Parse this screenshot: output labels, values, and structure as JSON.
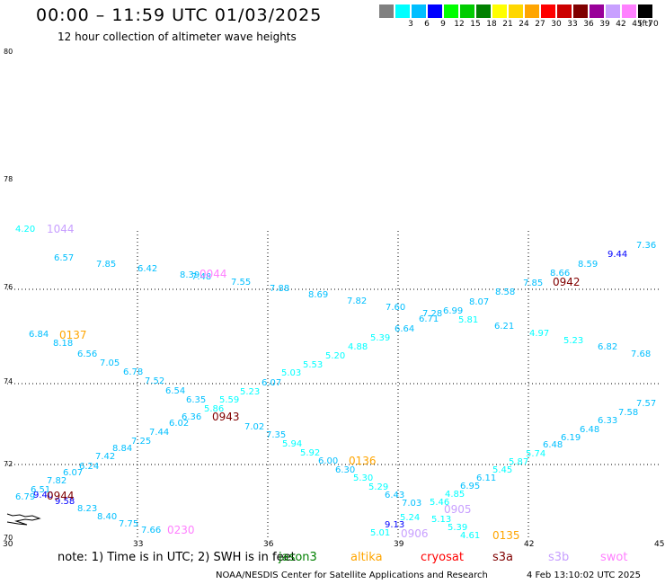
{
  "header": {
    "title": "00:00 – 11:59 UTC 01/03/2025",
    "subtitle": "12 hour collection of altimeter wave heights"
  },
  "scale": {
    "unit": "(ft)",
    "bins": [
      {
        "label": "",
        "color": "#808080"
      },
      {
        "label": "3",
        "color": "#00ffff"
      },
      {
        "label": "6",
        "color": "#00bfff"
      },
      {
        "label": "9",
        "color": "#0000ff"
      },
      {
        "label": "12",
        "color": "#00ff00"
      },
      {
        "label": "15",
        "color": "#00cc00"
      },
      {
        "label": "18",
        "color": "#008000"
      },
      {
        "label": "21",
        "color": "#ffff00"
      },
      {
        "label": "24",
        "color": "#ffd700"
      },
      {
        "label": "27",
        "color": "#ffa500"
      },
      {
        "label": "30",
        "color": "#ff0000"
      },
      {
        "label": "33",
        "color": "#cc0000"
      },
      {
        "label": "36",
        "color": "#800000"
      },
      {
        "label": "39",
        "color": "#990099"
      },
      {
        "label": "42",
        "color": "#c8a0ff"
      },
      {
        "label": "45",
        "color": "#ff80ff"
      },
      {
        "label": "70",
        "color": "#000000"
      }
    ]
  },
  "axes": {
    "lat_labels": [
      "80",
      "78",
      "76",
      "74",
      "72",
      "70"
    ],
    "lon_labels": [
      "30",
      "33",
      "36",
      "39",
      "42",
      "45"
    ]
  },
  "passes": [
    {
      "text": "1044",
      "color": "#c8a0ff"
    },
    {
      "text": "0044",
      "color": "#ff80ff"
    },
    {
      "text": "0942",
      "color": "#800000"
    },
    {
      "text": "0137",
      "color": "#ffa500"
    },
    {
      "text": "0943",
      "color": "#800000"
    },
    {
      "text": "0136",
      "color": "#ffa500"
    },
    {
      "text": "0944",
      "color": "#800000"
    },
    {
      "text": "0230",
      "color": "#ff80ff"
    },
    {
      "text": "0905",
      "color": "#c8a0ff"
    },
    {
      "text": "0906",
      "color": "#c8a0ff"
    },
    {
      "text": "0135",
      "color": "#ffa500"
    }
  ],
  "wave_heights": [
    {
      "v": "4.20",
      "c": "#00ffff"
    },
    {
      "v": "6.57",
      "c": "#00bfff"
    },
    {
      "v": "7.85",
      "c": "#00bfff"
    },
    {
      "v": "6.42",
      "c": "#00bfff"
    },
    {
      "v": "8.39",
      "c": "#00bfff"
    },
    {
      "v": "7.48",
      "c": "#00bfff"
    },
    {
      "v": "7.55",
      "c": "#00bfff"
    },
    {
      "v": "7.88",
      "c": "#00bfff"
    },
    {
      "v": "8.69",
      "c": "#00bfff"
    },
    {
      "v": "7.82",
      "c": "#00bfff"
    },
    {
      "v": "7.60",
      "c": "#00bfff"
    },
    {
      "v": "7.28",
      "c": "#00bfff"
    },
    {
      "v": "6.99",
      "c": "#00bfff"
    },
    {
      "v": "6.71",
      "c": "#00bfff"
    },
    {
      "v": "8.07",
      "c": "#00bfff"
    },
    {
      "v": "5.81",
      "c": "#00ffff"
    },
    {
      "v": "8.58",
      "c": "#00bfff"
    },
    {
      "v": "7.85",
      "c": "#00bfff"
    },
    {
      "v": "8.66",
      "c": "#00bfff"
    },
    {
      "v": "8.59",
      "c": "#00bfff"
    },
    {
      "v": "9.44",
      "c": "#0000ff"
    },
    {
      "v": "7.36",
      "c": "#00bfff"
    },
    {
      "v": "6.84",
      "c": "#00bfff"
    },
    {
      "v": "8.18",
      "c": "#00bfff"
    },
    {
      "v": "6.56",
      "c": "#00bfff"
    },
    {
      "v": "7.05",
      "c": "#00bfff"
    },
    {
      "v": "6.78",
      "c": "#00bfff"
    },
    {
      "v": "7.52",
      "c": "#00bfff"
    },
    {
      "v": "6.54",
      "c": "#00bfff"
    },
    {
      "v": "6.35",
      "c": "#00bfff"
    },
    {
      "v": "5.59",
      "c": "#00ffff"
    },
    {
      "v": "5.23",
      "c": "#00ffff"
    },
    {
      "v": "6.07",
      "c": "#00bfff"
    },
    {
      "v": "5.03",
      "c": "#00ffff"
    },
    {
      "v": "5.53",
      "c": "#00ffff"
    },
    {
      "v": "5.20",
      "c": "#00ffff"
    },
    {
      "v": "4.88",
      "c": "#00ffff"
    },
    {
      "v": "5.39",
      "c": "#00ffff"
    },
    {
      "v": "6.64",
      "c": "#00bfff"
    },
    {
      "v": "6.21",
      "c": "#00bfff"
    },
    {
      "v": "4.97",
      "c": "#00ffff"
    },
    {
      "v": "5.23",
      "c": "#00ffff"
    },
    {
      "v": "6.82",
      "c": "#00bfff"
    },
    {
      "v": "7.68",
      "c": "#00bfff"
    },
    {
      "v": "6.36",
      "c": "#00bfff"
    },
    {
      "v": "5.86",
      "c": "#00ffff"
    },
    {
      "v": "6.02",
      "c": "#00bfff"
    },
    {
      "v": "7.44",
      "c": "#00bfff"
    },
    {
      "v": "7.25",
      "c": "#00bfff"
    },
    {
      "v": "8.84",
      "c": "#00bfff"
    },
    {
      "v": "7.42",
      "c": "#00bfff"
    },
    {
      "v": "6.24",
      "c": "#00bfff"
    },
    {
      "v": "6.07",
      "c": "#00bfff"
    },
    {
      "v": "7.82",
      "c": "#00bfff"
    },
    {
      "v": "6.51",
      "c": "#00bfff"
    },
    {
      "v": "6.79",
      "c": "#00bfff"
    },
    {
      "v": "9.40",
      "c": "#0000ff"
    },
    {
      "v": "9.58",
      "c": "#0000ff"
    },
    {
      "v": "8.23",
      "c": "#00bfff"
    },
    {
      "v": "8.40",
      "c": "#00bfff"
    },
    {
      "v": "7.75",
      "c": "#00bfff"
    },
    {
      "v": "7.66",
      "c": "#00bfff"
    },
    {
      "v": "7.02",
      "c": "#00bfff"
    },
    {
      "v": "7.35",
      "c": "#00bfff"
    },
    {
      "v": "5.94",
      "c": "#00ffff"
    },
    {
      "v": "5.92",
      "c": "#00ffff"
    },
    {
      "v": "6.00",
      "c": "#00bfff"
    },
    {
      "v": "6.30",
      "c": "#00bfff"
    },
    {
      "v": "5.30",
      "c": "#00ffff"
    },
    {
      "v": "5.29",
      "c": "#00ffff"
    },
    {
      "v": "6.43",
      "c": "#00bfff"
    },
    {
      "v": "7.03",
      "c": "#00bfff"
    },
    {
      "v": "5.46",
      "c": "#00ffff"
    },
    {
      "v": "4.85",
      "c": "#00ffff"
    },
    {
      "v": "6.95",
      "c": "#00bfff"
    },
    {
      "v": "6.11",
      "c": "#00bfff"
    },
    {
      "v": "5.45",
      "c": "#00ffff"
    },
    {
      "v": "5.87",
      "c": "#00ffff"
    },
    {
      "v": "5.74",
      "c": "#00ffff"
    },
    {
      "v": "6.48",
      "c": "#00bfff"
    },
    {
      "v": "6.19",
      "c": "#00bfff"
    },
    {
      "v": "6.48",
      "c": "#00bfff"
    },
    {
      "v": "6.33",
      "c": "#00bfff"
    },
    {
      "v": "7.58",
      "c": "#00bfff"
    },
    {
      "v": "7.57",
      "c": "#00bfff"
    },
    {
      "v": "5.24",
      "c": "#00ffff"
    },
    {
      "v": "5.13",
      "c": "#00ffff"
    },
    {
      "v": "5.39",
      "c": "#00ffff"
    },
    {
      "v": "4.61",
      "c": "#00ffff"
    },
    {
      "v": "5.01",
      "c": "#00ffff"
    },
    {
      "v": "9.13",
      "c": "#0000ff"
    }
  ],
  "footer": {
    "note": "note:  1) Time is in UTC;  2) SWH is in feet",
    "satellites": [
      {
        "name": "jason3",
        "color": "#008000"
      },
      {
        "name": "altika",
        "color": "#ffa500"
      },
      {
        "name": "cryosat",
        "color": "#ff0000"
      },
      {
        "name": "s3a",
        "color": "#800000"
      },
      {
        "name": "s3b",
        "color": "#c8a0ff"
      },
      {
        "name": "swot",
        "color": "#ff80ff"
      }
    ],
    "credit": "NOAA/NESDIS Center for Satellite Applications and Research",
    "timestamp": "4 Feb 13:10:02 UTC 2025"
  }
}
